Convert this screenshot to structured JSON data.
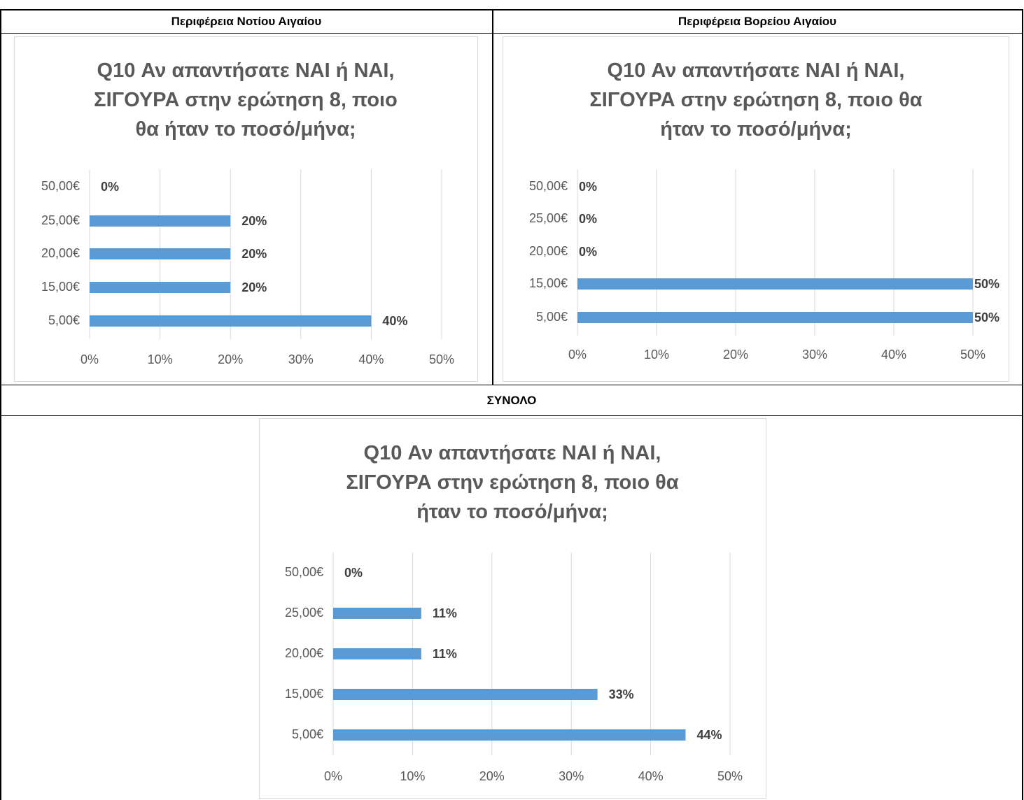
{
  "headers": [
    "Περιφέρεια Νοτίου Αιγαίου",
    "Περιφέρεια Βορείου Αιγαίου",
    "ΣΥΝΟΛΟ"
  ],
  "chart_data": [
    {
      "type": "barh",
      "title": "Q10 Αν απαντήσατε ΝΑΙ ή ΝΑΙ, ΣΙΓΟΥΡΑ στην ερώτηση 8, ποιο θα ήταν το ποσό/μήνα;",
      "categories": [
        "5,00€",
        "15,00€",
        "20,00€",
        "25,00€",
        "50,00€"
      ],
      "values": [
        40,
        20,
        20,
        20,
        0
      ],
      "value_labels": [
        "40%",
        "20%",
        "20%",
        "20%",
        "0%"
      ],
      "color": "#5b9bd5",
      "xlim": [
        0,
        50
      ],
      "xticks": [
        {
          "value": 0,
          "label": "0%"
        },
        {
          "value": 10,
          "label": "10%"
        },
        {
          "value": 20,
          "label": "20%"
        },
        {
          "value": 30,
          "label": "30%"
        },
        {
          "value": 40,
          "label": "40%"
        },
        {
          "value": 50,
          "label": "50%"
        }
      ],
      "grid": true
    },
    {
      "type": "barh",
      "title": "Q10 Αν απαντήσατε ΝΑΙ ή ΝΑΙ, ΣΙΓΟΥΡΑ στην ερώτηση 8, ποιο θα ήταν το ποσό/μήνα;",
      "categories": [
        "5,00€",
        "15,00€",
        "20,00€",
        "25,00€",
        "50,00€"
      ],
      "values": [
        50,
        50,
        0,
        0,
        0
      ],
      "value_labels": [
        "50%",
        "50%",
        "0%",
        "0%",
        "0%"
      ],
      "color": "#5b9bd5",
      "xlim": [
        0,
        50
      ],
      "xticks": [
        {
          "value": 0,
          "label": "0%"
        },
        {
          "value": 10,
          "label": "10%"
        },
        {
          "value": 20,
          "label": "20%"
        },
        {
          "value": 30,
          "label": "30%"
        },
        {
          "value": 40,
          "label": "40%"
        },
        {
          "value": 50,
          "label": "50%"
        }
      ],
      "grid": true
    },
    {
      "type": "barh",
      "title": "Q10 Αν απαντήσατε ΝΑΙ ή ΝΑΙ, ΣΙΓΟΥΡΑ στην ερώτηση 8, ποιο θα ήταν το ποσό/μήνα;",
      "categories": [
        "5,00€",
        "15,00€",
        "20,00€",
        "25,00€",
        "50,00€"
      ],
      "values": [
        44.4,
        33.3,
        11.1,
        11.1,
        0
      ],
      "value_labels": [
        "44%",
        "33%",
        "11%",
        "11%",
        "0%"
      ],
      "color": "#5b9bd5",
      "xlim": [
        0,
        50
      ],
      "xticks": [
        {
          "value": 0,
          "label": "0%"
        },
        {
          "value": 10,
          "label": "10%"
        },
        {
          "value": 20,
          "label": "20%"
        },
        {
          "value": 30,
          "label": "30%"
        },
        {
          "value": 40,
          "label": "40%"
        },
        {
          "value": 50,
          "label": "50%"
        }
      ],
      "grid": true
    }
  ]
}
